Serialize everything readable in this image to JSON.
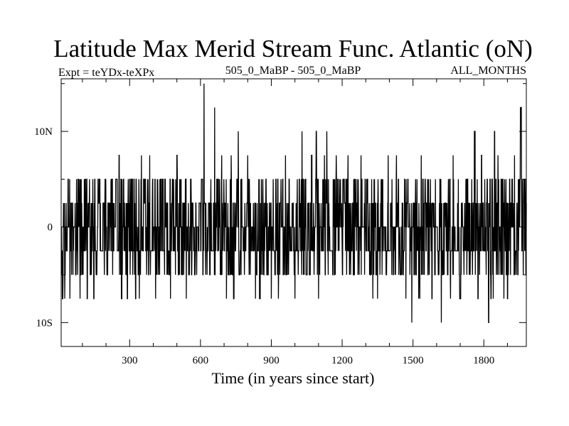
{
  "chart_data": {
    "type": "line",
    "title": "Latitude Max Merid Stream Func. Atlantic (oN)",
    "subtitle_left": "Expt = teYDx-teXPx",
    "subtitle_center": "505_0_MaBP - 505_0_MaBP",
    "subtitle_right": "ALL_MONTHS",
    "xlabel": "Time (in years since start)",
    "ylabel": "",
    "xlim": [
      10,
      1980
    ],
    "ylim": [
      -12.5,
      15.5
    ],
    "x_ticks": [
      300,
      600,
      900,
      1200,
      1500,
      1800
    ],
    "x_tick_labels": [
      "300",
      "600",
      "900",
      "1200",
      "1500",
      "1800"
    ],
    "y_ticks": [
      -10,
      0,
      10
    ],
    "y_tick_labels": [
      "10S",
      "0",
      "10N"
    ],
    "grid": false,
    "legend": "none",
    "series": [
      {
        "name": "Latitude of max meridional stream function (Atlantic)",
        "sampling": "yearly",
        "typical_values": [
          -7.5,
          -5,
          -2.5,
          0,
          2.5,
          5
        ],
        "typical_weights": [
          0.01,
          0.18,
          0.24,
          0.24,
          0.2,
          0.15
        ],
        "extreme_points": [
          {
            "x": 15,
            "y": -7.5
          },
          {
            "x": 25,
            "y": -7.5
          },
          {
            "x": 120,
            "y": -7.5
          },
          {
            "x": 148,
            "y": -7.5
          },
          {
            "x": 255,
            "y": 7.5
          },
          {
            "x": 265,
            "y": -7.5
          },
          {
            "x": 290,
            "y": -7.5
          },
          {
            "x": 325,
            "y": -7.5
          },
          {
            "x": 350,
            "y": 7.5
          },
          {
            "x": 385,
            "y": 7.5
          },
          {
            "x": 410,
            "y": -7.5
          },
          {
            "x": 500,
            "y": 7.5
          },
          {
            "x": 540,
            "y": -7.5
          },
          {
            "x": 615,
            "y": 15
          },
          {
            "x": 660,
            "y": 12.5
          },
          {
            "x": 690,
            "y": 7.5
          },
          {
            "x": 710,
            "y": -7.5
          },
          {
            "x": 730,
            "y": 7.5
          },
          {
            "x": 740,
            "y": -7.5
          },
          {
            "x": 760,
            "y": 10
          },
          {
            "x": 800,
            "y": 7.5
          },
          {
            "x": 850,
            "y": -7.5
          },
          {
            "x": 900,
            "y": -7.5
          },
          {
            "x": 930,
            "y": -7.5
          },
          {
            "x": 960,
            "y": 7.5
          },
          {
            "x": 1000,
            "y": -7.5
          },
          {
            "x": 1030,
            "y": 10
          },
          {
            "x": 1070,
            "y": 7.5
          },
          {
            "x": 1090,
            "y": 10
          },
          {
            "x": 1100,
            "y": -7.5
          },
          {
            "x": 1125,
            "y": 7.5
          },
          {
            "x": 1135,
            "y": 10
          },
          {
            "x": 1175,
            "y": 7.5
          },
          {
            "x": 1225,
            "y": 7.5
          },
          {
            "x": 1280,
            "y": 7.5
          },
          {
            "x": 1330,
            "y": -7.5
          },
          {
            "x": 1350,
            "y": -7.5
          },
          {
            "x": 1395,
            "y": 7.5
          },
          {
            "x": 1430,
            "y": 7.5
          },
          {
            "x": 1470,
            "y": -7.5
          },
          {
            "x": 1495,
            "y": -10
          },
          {
            "x": 1535,
            "y": 7.5
          },
          {
            "x": 1580,
            "y": -7.5
          },
          {
            "x": 1620,
            "y": -10
          },
          {
            "x": 1670,
            "y": 7.5
          },
          {
            "x": 1700,
            "y": -7.5
          },
          {
            "x": 1760,
            "y": 10
          },
          {
            "x": 1775,
            "y": -7.5
          },
          {
            "x": 1790,
            "y": 7.5
          },
          {
            "x": 1820,
            "y": -10
          },
          {
            "x": 1830,
            "y": -7.5
          },
          {
            "x": 1845,
            "y": 10
          },
          {
            "x": 1860,
            "y": 7.5
          },
          {
            "x": 1900,
            "y": -7.5
          },
          {
            "x": 1930,
            "y": 7.5
          },
          {
            "x": 1955,
            "y": 12.5
          }
        ]
      }
    ]
  }
}
